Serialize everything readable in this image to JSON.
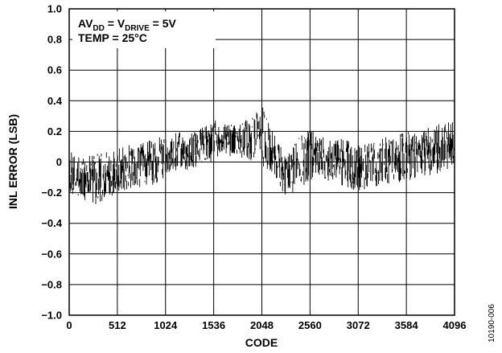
{
  "chart_data": {
    "type": "line",
    "xlabel": "CODE",
    "ylabel": "INL ERROR (LSB)",
    "xlim": [
      0,
      4096
    ],
    "ylim": [
      -1.0,
      1.0
    ],
    "x_ticks": [
      "0",
      "512",
      "1024",
      "1536",
      "2048",
      "2560",
      "3072",
      "3584",
      "4096"
    ],
    "y_ticks": [
      "1.0",
      "0.8",
      "0.6",
      "0.4",
      "0.2",
      "0",
      "−0.2",
      "−0.4",
      "−0.6",
      "−0.8",
      "−1.0"
    ],
    "grid": true,
    "annotation": {
      "line1_main": "AV",
      "line1_sub1": "DD",
      "line1_mid": " = V",
      "line1_sub2": "DRIVE",
      "line1_end": " = 5V",
      "line2": "TEMP = 25°C"
    },
    "figure_id": "10190-006",
    "series_color": "#000000",
    "series": [
      {
        "x": [
          0,
          128,
          256,
          384,
          512,
          640,
          768,
          896,
          1024,
          1152,
          1280,
          1408,
          1536,
          1664,
          1792,
          1920,
          2048,
          2176,
          2304,
          2432,
          2560,
          2688,
          2816,
          2944,
          3072,
          3200,
          3328,
          3456,
          3584,
          3712,
          3840,
          3968,
          4096
        ],
        "y_min": [
          -0.22,
          -0.24,
          -0.29,
          -0.27,
          -0.21,
          -0.18,
          -0.17,
          -0.16,
          -0.1,
          -0.06,
          -0.06,
          -0.02,
          0.0,
          0.04,
          0.02,
          0.0,
          -0.04,
          -0.08,
          -0.25,
          -0.18,
          -0.14,
          -0.12,
          -0.14,
          -0.18,
          -0.2,
          -0.18,
          -0.16,
          -0.14,
          -0.14,
          -0.1,
          -0.1,
          -0.08,
          -0.02
        ],
        "y_max": [
          0.08,
          0.04,
          0.06,
          0.08,
          0.1,
          0.12,
          0.13,
          0.16,
          0.18,
          0.2,
          0.2,
          0.24,
          0.28,
          0.26,
          0.24,
          0.3,
          0.4,
          0.2,
          0.05,
          0.17,
          0.22,
          0.18,
          0.16,
          0.16,
          0.12,
          0.14,
          0.16,
          0.2,
          0.22,
          0.2,
          0.24,
          0.26,
          0.28
        ]
      }
    ]
  }
}
